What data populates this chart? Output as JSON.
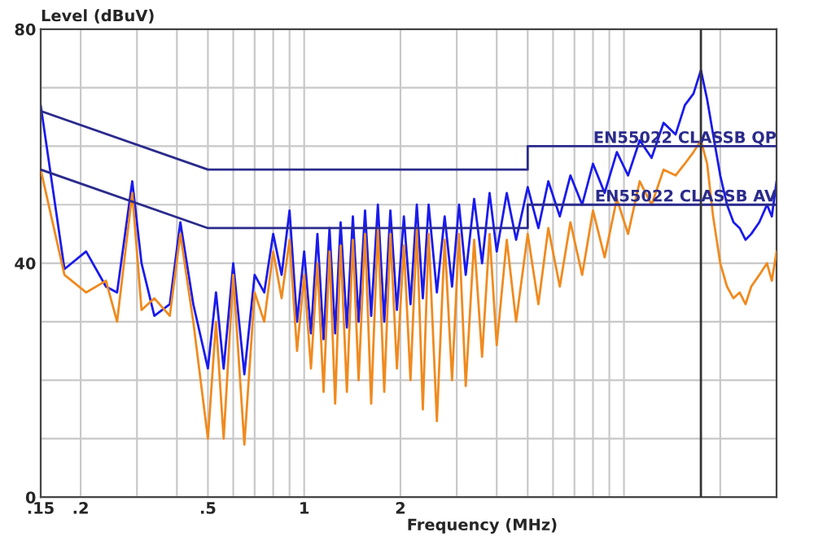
{
  "chart_data": {
    "type": "line",
    "xlabel": "Frequency (MHz)",
    "ylabel": "Level (dBuV)",
    "log": "x",
    "grid": true,
    "legend": false,
    "marker": "none",
    "line_style": "solid",
    "xlim": [
      0.15,
      30
    ],
    "ylim": [
      0,
      80
    ],
    "xticks": [
      {
        "value": 0.15,
        "label": ".15"
      },
      {
        "value": 0.2,
        "label": ".2"
      },
      {
        "value": 0.3,
        "label": null
      },
      {
        "value": 0.4,
        "label": null
      },
      {
        "value": 0.5,
        "label": ".5"
      },
      {
        "value": 0.6,
        "label": null
      },
      {
        "value": 0.7,
        "label": null
      },
      {
        "value": 0.8,
        "label": null
      },
      {
        "value": 0.9,
        "label": null
      },
      1,
      2,
      {
        "value": 3,
        "label": null
      },
      {
        "value": 4,
        "label": null
      },
      {
        "value": 5,
        "label": null
      },
      {
        "value": 6,
        "label": null
      },
      {
        "value": 7,
        "label": null
      },
      {
        "value": 8,
        "label": null
      },
      {
        "value": 9,
        "label": null
      },
      {
        "value": 10,
        "label": null
      },
      {
        "value": 20,
        "label": null
      },
      {
        "value": 30,
        "label": null
      }
    ],
    "yticks": [
      0,
      {
        "value": 10,
        "label": null
      },
      {
        "value": 20,
        "label": null
      },
      {
        "value": 30,
        "label": null
      },
      40,
      {
        "value": 50,
        "label": null
      },
      {
        "value": 60,
        "label": null
      },
      {
        "value": 70,
        "label": null
      },
      80
    ],
    "x": [
      0.15,
      0.178,
      0.208,
      0.24,
      0.26,
      0.29,
      0.31,
      0.34,
      0.38,
      0.41,
      0.45,
      0.5,
      0.53,
      0.56,
      0.6,
      0.65,
      0.7,
      0.75,
      0.8,
      0.85,
      0.9,
      0.95,
      1.0,
      1.05,
      1.1,
      1.15,
      1.2,
      1.25,
      1.3,
      1.36,
      1.42,
      1.48,
      1.55,
      1.62,
      1.7,
      1.78,
      1.86,
      1.95,
      2.05,
      2.15,
      2.25,
      2.35,
      2.45,
      2.6,
      2.75,
      2.9,
      3.05,
      3.2,
      3.4,
      3.6,
      3.8,
      4.0,
      4.3,
      4.6,
      5.0,
      5.4,
      5.8,
      6.3,
      6.8,
      7.4,
      8.0,
      8.7,
      9.5,
      10.3,
      11.2,
      12.2,
      13.3,
      14.5,
      15.5,
      16.5,
      17.4,
      18.2,
      19.0,
      20.0,
      21.0,
      22.0,
      23.0,
      24.0,
      25.0,
      26.5,
      28.0,
      29.0,
      30.0
    ],
    "series": [
      {
        "color": "#1a1aee",
        "values": [
          67,
          39,
          42,
          36,
          35,
          54,
          40,
          31,
          33,
          47,
          33,
          22,
          35,
          22,
          40,
          21,
          38,
          35,
          45,
          38,
          49,
          30,
          42,
          28,
          45,
          27,
          46,
          28,
          47,
          29,
          48,
          30,
          49,
          31,
          50,
          30,
          49,
          32,
          48,
          33,
          50,
          34,
          50,
          35,
          48,
          36,
          50,
          38,
          51,
          40,
          52,
          42,
          52,
          44,
          53,
          46,
          54,
          48,
          55,
          50,
          57,
          52,
          59,
          55,
          61,
          58,
          64,
          62,
          67,
          69,
          73,
          68,
          62,
          55,
          50,
          47,
          46,
          44,
          45,
          47,
          50,
          48,
          54
        ]
      },
      {
        "color": "#f08a1e",
        "values": [
          56,
          38,
          35,
          37,
          30,
          52,
          32,
          34,
          31,
          45,
          30,
          10,
          30,
          10,
          38,
          9,
          35,
          30,
          42,
          34,
          44,
          25,
          38,
          22,
          40,
          18,
          42,
          16,
          43,
          18,
          44,
          20,
          45,
          16,
          46,
          18,
          45,
          22,
          43,
          20,
          46,
          15,
          45,
          13,
          44,
          20,
          45,
          19,
          44,
          24,
          45,
          26,
          44,
          30,
          45,
          33,
          46,
          36,
          47,
          38,
          49,
          41,
          51,
          45,
          54,
          50,
          56,
          55,
          57,
          59,
          61,
          57,
          48,
          40,
          36,
          34,
          35,
          33,
          36,
          38,
          40,
          37,
          42
        ]
      },
      {
        "name": "EN55022 CLASSB QP",
        "color": "#2b2b8c",
        "x": [
          0.15,
          0.5,
          5,
          5,
          30
        ],
        "values": [
          66,
          56,
          56,
          60,
          60
        ]
      },
      {
        "name": "EN55022 CLASSB AV",
        "color": "#2b2b8c",
        "x": [
          0.15,
          0.5,
          5,
          5,
          30
        ],
        "values": [
          56,
          46,
          46,
          50,
          50
        ]
      }
    ],
    "ref_lines": [
      {
        "axis": "x",
        "value": 17.4,
        "color": "#333333"
      }
    ]
  }
}
